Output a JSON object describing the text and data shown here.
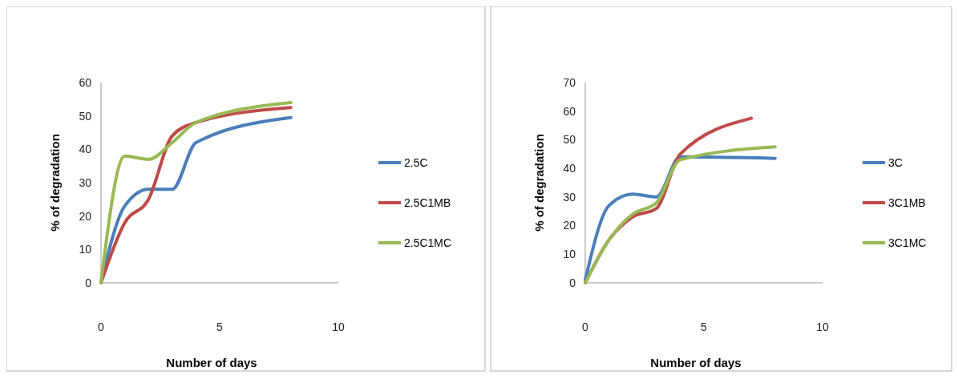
{
  "chart_data": [
    {
      "type": "line",
      "xlabel": "Number of days",
      "ylabel": "% of degradation",
      "xlim": [
        0,
        10
      ],
      "xticks": [
        0,
        5,
        10
      ],
      "ylim": [
        0,
        60
      ],
      "yticks": [
        0,
        10,
        20,
        30,
        40,
        50,
        60
      ],
      "legend": "right",
      "grid": false,
      "marker": "none",
      "line_style": "solid",
      "x": [
        0,
        1,
        2,
        3,
        4,
        8
      ],
      "series": [
        {
          "name": "2.5C",
          "color": "#4a7ebb",
          "values": [
            0,
            23,
            28,
            28,
            42,
            49.5
          ]
        },
        {
          "name": "2.5C1MB",
          "color": "#be4b48",
          "values": [
            0,
            18,
            25,
            44,
            48,
            52.5
          ]
        },
        {
          "name": "2.5C1MC",
          "color": "#98b954",
          "values": [
            0,
            38,
            37,
            42,
            48,
            54
          ]
        }
      ]
    },
    {
      "type": "line",
      "xlabel": "Number of days",
      "ylabel": "% of degradation",
      "xlim": [
        0,
        10
      ],
      "xticks": [
        0,
        5,
        10
      ],
      "ylim": [
        0,
        70
      ],
      "yticks": [
        0,
        10,
        20,
        30,
        40,
        50,
        60,
        70
      ],
      "legend": "right",
      "grid": false,
      "marker": "none",
      "line_style": "solid",
      "series": [
        {
          "name": "3C",
          "color": "#4a7ebb",
          "x": [
            0,
            1,
            2,
            3,
            4,
            8
          ],
          "values": [
            1,
            27,
            31,
            30,
            44,
            43.5
          ]
        },
        {
          "name": "3C1MB",
          "color": "#be4b48",
          "x": [
            0,
            1,
            2,
            3,
            4,
            7
          ],
          "values": [
            0,
            15,
            23,
            26,
            45,
            57.5
          ]
        },
        {
          "name": "3C1MC",
          "color": "#98b954",
          "x": [
            0,
            1,
            2,
            3,
            4,
            8
          ],
          "values": [
            0,
            15,
            24,
            28,
            43,
            47.5
          ]
        }
      ]
    }
  ]
}
